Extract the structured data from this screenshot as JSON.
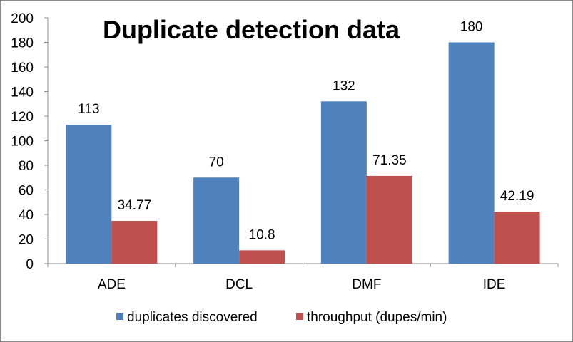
{
  "chart_data": {
    "type": "bar",
    "title": "Duplicate detection data",
    "xlabel": "",
    "ylabel": "",
    "categories": [
      "ADE",
      "DCL",
      "DMF",
      "IDE"
    ],
    "series": [
      {
        "name": "duplicates discovered",
        "color": "#4f81bd",
        "values": [
          113,
          70,
          132,
          180
        ],
        "labels": [
          "113",
          "70",
          "132",
          "180"
        ]
      },
      {
        "name": "throughput (dupes/min)",
        "color": "#c0504d",
        "values": [
          34.77,
          10.8,
          71.35,
          42.19
        ],
        "labels": [
          "34.77",
          "10.8",
          "71.35",
          "42.19"
        ]
      }
    ],
    "ylim": [
      0,
      200
    ],
    "yticks": [
      "0",
      "20",
      "40",
      "60",
      "80",
      "100",
      "120",
      "140",
      "160",
      "180",
      "200"
    ],
    "grid": false,
    "legend_position": "bottom"
  }
}
